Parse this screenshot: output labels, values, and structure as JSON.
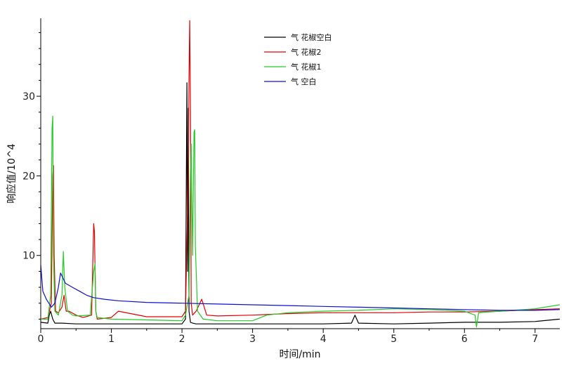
{
  "chart_data": {
    "type": "line",
    "title": "",
    "xlabel": "时间/min",
    "ylabel": "响应值/10^4",
    "xlim": [
      0,
      7.35
    ],
    "ylim": [
      0.8,
      39.8
    ],
    "x_ticks": [
      "0",
      "1",
      "2",
      "3",
      "4",
      "5",
      "6",
      "7"
    ],
    "y_ticks": [
      "10",
      "20",
      "30"
    ],
    "legend_position": "top-center",
    "grid": false,
    "series": [
      {
        "name": "气  花椒空白",
        "color": "#000000",
        "x": [
          0.0,
          0.1,
          0.12,
          0.14,
          0.17,
          0.2,
          0.3,
          0.5,
          0.7,
          1.0,
          1.5,
          2.0,
          2.05,
          2.07,
          2.08,
          2.09,
          2.1,
          2.12,
          2.15,
          2.2,
          2.5,
          3.0,
          3.5,
          4.0,
          4.4,
          4.45,
          4.5,
          5.0,
          5.5,
          6.0,
          6.5,
          7.0,
          7.35
        ],
        "values": [
          1.6,
          1.5,
          2.5,
          3.0,
          2.0,
          1.5,
          1.5,
          1.4,
          1.4,
          1.4,
          1.4,
          1.4,
          2.0,
          31.7,
          8.0,
          28.5,
          3.0,
          1.6,
          1.5,
          1.4,
          1.4,
          1.4,
          1.4,
          1.4,
          1.5,
          2.5,
          1.5,
          1.4,
          1.5,
          1.6,
          1.6,
          1.7,
          2.0
        ]
      },
      {
        "name": "气  花椒2",
        "color": "#e00000",
        "x": [
          0.0,
          0.1,
          0.15,
          0.17,
          0.18,
          0.19,
          0.21,
          0.25,
          0.3,
          0.33,
          0.36,
          0.4,
          0.5,
          0.6,
          0.72,
          0.75,
          0.76,
          0.78,
          0.8,
          1.0,
          1.1,
          1.5,
          2.0,
          2.05,
          2.09,
          2.1,
          2.11,
          2.12,
          2.13,
          2.15,
          2.2,
          2.28,
          2.35,
          2.5,
          3.0,
          3.5,
          4.0,
          4.5,
          5.0,
          5.5,
          6.0,
          6.5,
          7.0,
          7.35
        ],
        "values": [
          2.0,
          2.2,
          4.0,
          20.0,
          21.3,
          10.0,
          3.0,
          2.8,
          3.5,
          5.0,
          3.0,
          3.0,
          2.5,
          2.2,
          2.5,
          14.0,
          13.0,
          3.0,
          2.0,
          2.2,
          3.0,
          2.3,
          2.3,
          3.0,
          20.0,
          32.5,
          39.5,
          28.0,
          4.0,
          2.5,
          3.0,
          4.5,
          2.5,
          2.4,
          2.5,
          2.7,
          2.8,
          2.8,
          2.8,
          2.9,
          2.9,
          3.0,
          3.2,
          3.3
        ]
      },
      {
        "name": "气  花椒1",
        "color": "#22cc22",
        "x": [
          0.0,
          0.1,
          0.14,
          0.16,
          0.17,
          0.18,
          0.2,
          0.25,
          0.3,
          0.32,
          0.34,
          0.38,
          0.45,
          0.5,
          0.7,
          0.75,
          0.77,
          0.78,
          0.8,
          1.0,
          1.5,
          2.0,
          2.05,
          2.1,
          2.12,
          2.13,
          2.15,
          2.17,
          2.18,
          2.19,
          2.22,
          2.3,
          2.5,
          3.0,
          3.2,
          3.5,
          4.0,
          4.5,
          5.0,
          5.5,
          6.0,
          6.15,
          6.17,
          6.2,
          6.5,
          7.0,
          7.35
        ],
        "values": [
          2.0,
          2.0,
          5.0,
          26.0,
          27.5,
          10.0,
          3.0,
          2.5,
          5.0,
          10.5,
          6.0,
          3.0,
          2.5,
          2.4,
          2.5,
          8.0,
          9.0,
          3.0,
          2.2,
          2.0,
          1.9,
          1.8,
          2.5,
          5.0,
          20.0,
          24.0,
          10.0,
          25.5,
          25.8,
          11.0,
          3.0,
          2.0,
          1.8,
          1.8,
          2.5,
          2.8,
          3.0,
          3.1,
          3.3,
          3.2,
          3.0,
          2.5,
          1.0,
          2.8,
          3.0,
          3.3,
          3.8
        ]
      },
      {
        "name": "气  空白",
        "color": "#1010cc",
        "x": [
          0.0,
          0.03,
          0.08,
          0.15,
          0.2,
          0.25,
          0.28,
          0.35,
          0.45,
          0.55,
          0.65,
          0.75,
          0.9,
          1.1,
          1.5,
          2.0,
          2.5,
          3.0,
          3.5,
          4.0,
          4.5,
          5.0,
          5.5,
          6.0,
          6.5,
          7.0,
          7.35
        ],
        "values": [
          8.8,
          5.5,
          4.5,
          3.5,
          4.0,
          6.0,
          7.8,
          6.5,
          6.0,
          5.5,
          5.0,
          4.7,
          4.5,
          4.3,
          4.1,
          4.0,
          3.9,
          3.8,
          3.7,
          3.6,
          3.5,
          3.4,
          3.3,
          3.2,
          3.1,
          3.1,
          3.2
        ]
      }
    ]
  }
}
